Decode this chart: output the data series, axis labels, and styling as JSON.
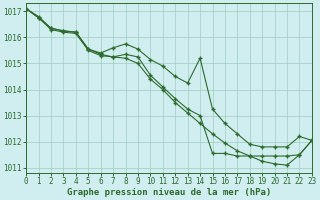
{
  "xlabel": "Graphe pression niveau de la mer (hPa)",
  "xlim": [
    0,
    23
  ],
  "ylim": [
    1010.8,
    1017.3
  ],
  "yticks": [
    1011,
    1012,
    1013,
    1014,
    1015,
    1016,
    1017
  ],
  "xticks": [
    0,
    1,
    2,
    3,
    4,
    5,
    6,
    7,
    8,
    9,
    10,
    11,
    12,
    13,
    14,
    15,
    16,
    17,
    18,
    19,
    20,
    21,
    22,
    23
  ],
  "bg_color": "#d0eef0",
  "line_color": "#2d6a2d",
  "grid_color": "#a0ccc0",
  "line1_x": [
    0,
    1,
    2,
    3,
    4,
    5,
    6,
    7,
    8,
    9,
    10,
    11,
    12,
    13,
    14,
    15,
    16,
    17,
    18,
    19,
    20,
    21,
    22,
    23
  ],
  "line1_y": [
    1017.1,
    1016.8,
    1016.35,
    1016.25,
    1016.2,
    1015.55,
    1015.35,
    1015.25,
    1015.35,
    1015.25,
    1014.55,
    1014.1,
    1013.65,
    1013.25,
    1013.0,
    1011.55,
    1011.55,
    1011.45,
    1011.45,
    1011.45,
    1011.45,
    1011.45,
    1011.5,
    1012.05
  ],
  "line2_x": [
    0,
    1,
    2,
    3,
    4,
    5,
    6,
    7,
    8,
    9,
    10,
    11,
    12,
    13,
    14,
    15,
    16,
    17,
    18,
    19,
    20,
    21,
    22,
    23
  ],
  "line2_y": [
    1017.1,
    1016.75,
    1016.35,
    1016.25,
    1016.2,
    1015.55,
    1015.4,
    1015.6,
    1015.75,
    1015.55,
    1015.15,
    1014.9,
    1014.5,
    1014.25,
    1015.2,
    1013.25,
    1012.7,
    1012.3,
    1011.9,
    1011.8,
    1011.8,
    1011.8,
    1012.2,
    1012.05
  ],
  "line3_x": [
    0,
    1,
    2,
    3,
    4,
    5,
    6,
    7,
    8,
    9,
    10,
    11,
    12,
    13,
    14,
    15,
    16,
    17,
    18,
    19,
    20,
    21,
    22,
    23
  ],
  "line3_y": [
    1017.1,
    1016.75,
    1016.3,
    1016.2,
    1016.15,
    1015.5,
    1015.3,
    1015.25,
    1015.2,
    1015.0,
    1014.4,
    1014.0,
    1013.5,
    1013.1,
    1012.7,
    1012.3,
    1011.95,
    1011.65,
    1011.45,
    1011.25,
    1011.15,
    1011.1,
    1011.5,
    1012.05
  ],
  "marker": "+",
  "markersize": 3,
  "markeredgewidth": 1.0,
  "linewidth": 0.8,
  "tick_fontsize": 5.5,
  "xlabel_fontsize": 6.5
}
